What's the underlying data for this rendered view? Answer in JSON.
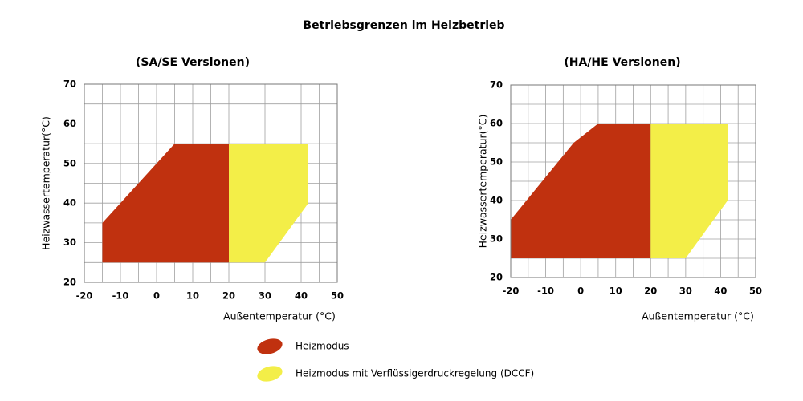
{
  "title": "Betriebsgrenzen im Heizbetrieb",
  "legend": [
    {
      "name": "Heizmodus",
      "color": "#c0310f"
    },
    {
      "name": "Heizmodus mit Verflüssigerdruckregelung (DCCF)",
      "color": "#f3ee48"
    }
  ],
  "chart_data": [
    {
      "type": "polygon",
      "title": "(SA/SE Versionen)",
      "xlabel": "Außentemperatur (°C)",
      "ylabel": "Heizwassertemperatur(°C)",
      "xlim": [
        -20,
        50
      ],
      "ylim": [
        20,
        70
      ],
      "xticks": [
        -20,
        -10,
        0,
        10,
        20,
        30,
        40,
        50
      ],
      "yticks": [
        20,
        30,
        40,
        50,
        60,
        70
      ],
      "grid": true,
      "minor_grid": true,
      "series": [
        {
          "color": "#c0310f",
          "x": [
            -15,
            -15,
            5,
            20,
            20
          ],
          "y": [
            25,
            35,
            55,
            55,
            25
          ]
        },
        {
          "color": "#f3ee48",
          "x": [
            20,
            20,
            42,
            42,
            30
          ],
          "y": [
            25,
            55,
            55,
            40,
            25
          ]
        }
      ]
    },
    {
      "type": "polygon",
      "title": "(HA/HE Versionen)",
      "xlabel": "Außentemperatur (°C)",
      "ylabel": "Heizwassertemperatur(°C)",
      "xlim": [
        -20,
        50
      ],
      "ylim": [
        20,
        70
      ],
      "xticks": [
        -20,
        -10,
        0,
        10,
        20,
        30,
        40,
        50
      ],
      "yticks": [
        20,
        30,
        40,
        50,
        60,
        70
      ],
      "grid": true,
      "minor_grid": true,
      "series": [
        {
          "color": "#c0310f",
          "x": [
            -20,
            -20,
            -2,
            5,
            20,
            20
          ],
          "y": [
            25,
            35,
            55,
            60,
            60,
            25
          ]
        },
        {
          "color": "#f3ee48",
          "x": [
            20,
            20,
            42,
            42,
            30
          ],
          "y": [
            25,
            60,
            60,
            40,
            25
          ]
        }
      ]
    }
  ]
}
